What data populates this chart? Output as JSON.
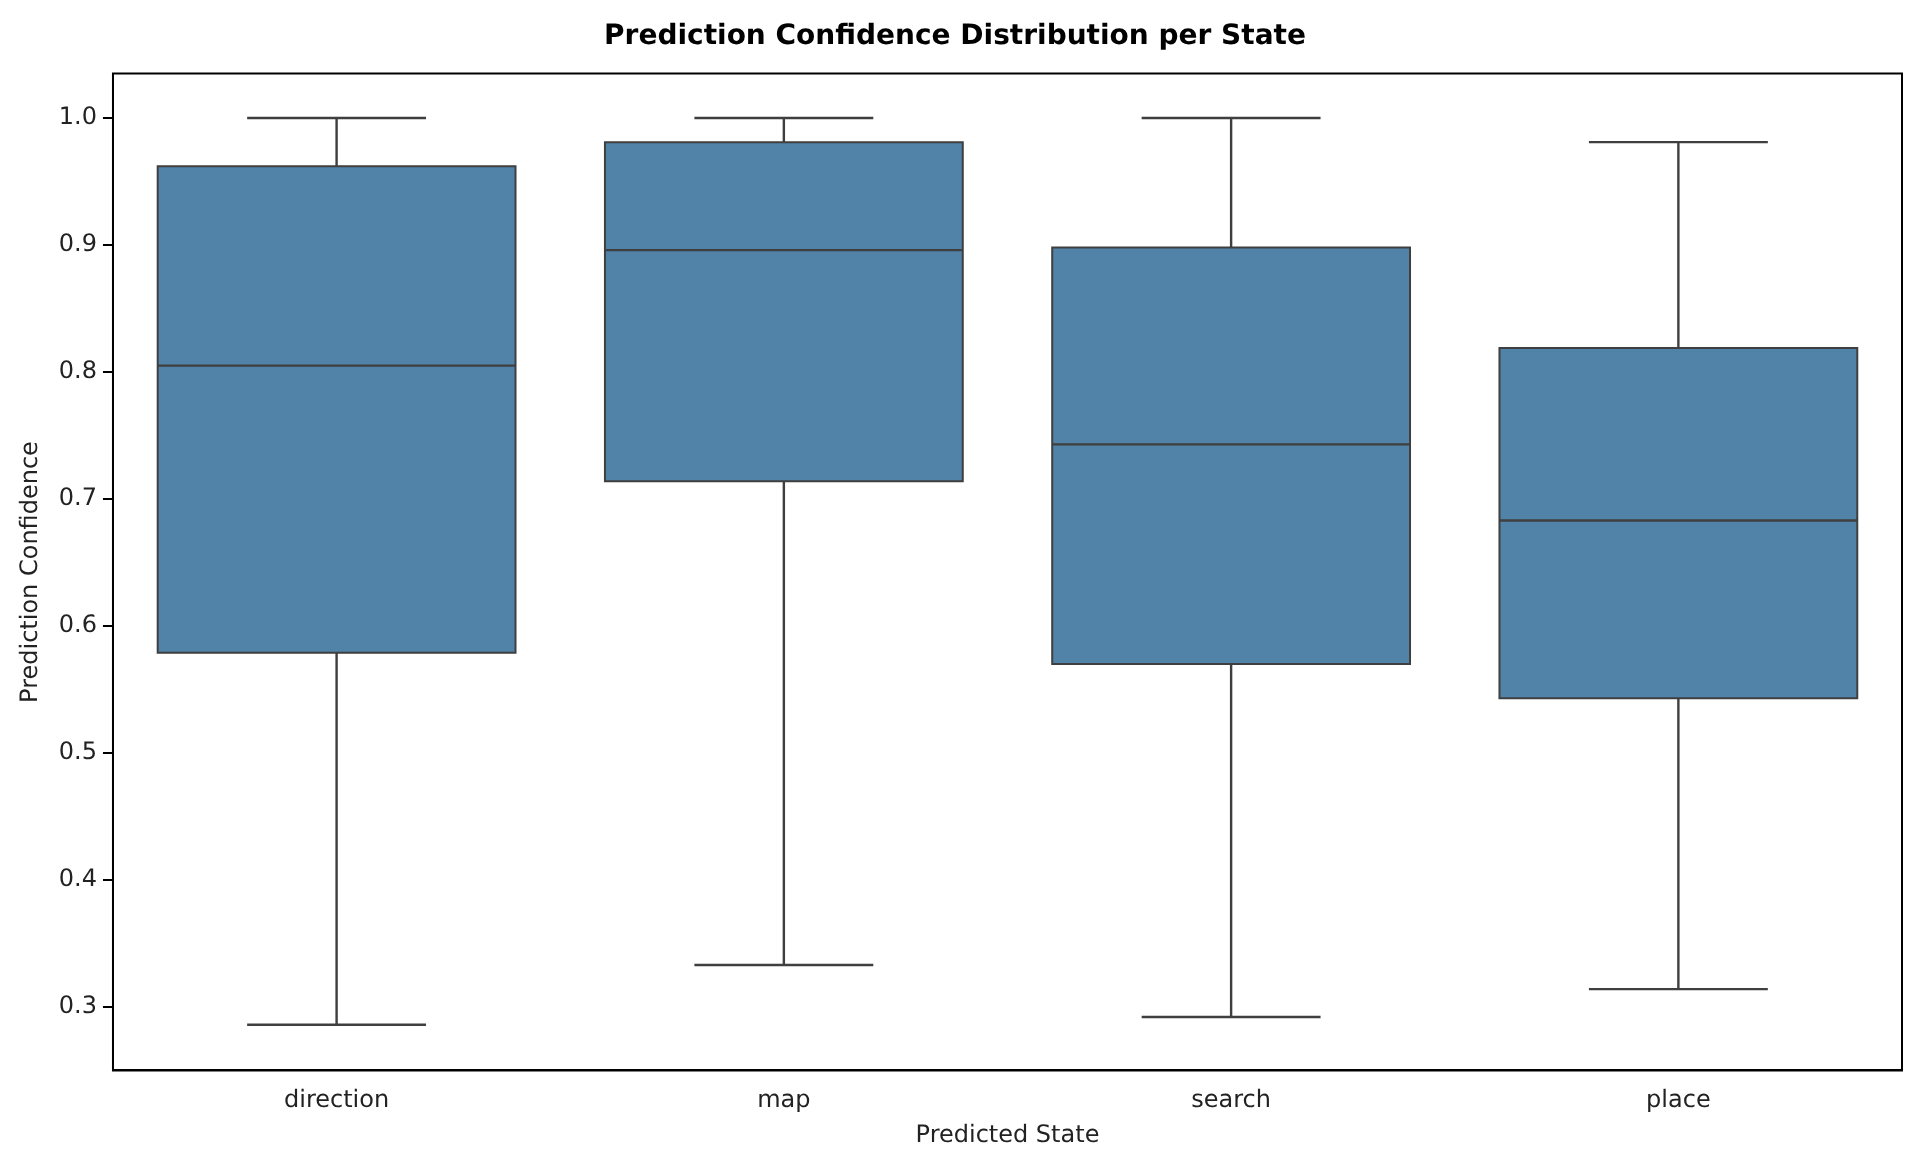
{
  "chart_data": {
    "type": "box",
    "title": "Prediction Confidence Distribution per State",
    "xlabel": "Predicted State",
    "ylabel": "Prediction Confidence",
    "categories": [
      "direction",
      "map",
      "search",
      "place"
    ],
    "series": [
      {
        "color": "#5182a8",
        "boxes": [
          {
            "low": 0.286,
            "q1": 0.579,
            "median": 0.805,
            "q3": 0.962,
            "high": 1.0
          },
          {
            "low": 0.333,
            "q1": 0.714,
            "median": 0.896,
            "q3": 0.981,
            "high": 1.0
          },
          {
            "low": 0.292,
            "q1": 0.57,
            "median": 0.743,
            "q3": 0.898,
            "high": 1.0
          },
          {
            "low": 0.314,
            "q1": 0.543,
            "median": 0.683,
            "q3": 0.819,
            "high": 0.981
          }
        ]
      }
    ],
    "ylim": [
      0.25,
      1.035
    ],
    "yticks": [
      {
        "value": 0.3,
        "label": "0.3"
      },
      {
        "value": 0.4,
        "label": "0.4"
      },
      {
        "value": 0.5,
        "label": "0.5"
      },
      {
        "value": 0.6,
        "label": "0.6"
      },
      {
        "value": 0.7,
        "label": "0.7"
      },
      {
        "value": 0.8,
        "label": "0.8"
      },
      {
        "value": 0.9,
        "label": "0.9"
      },
      {
        "value": 1.0,
        "label": "1.0"
      }
    ],
    "grid": false,
    "legend": false
  }
}
